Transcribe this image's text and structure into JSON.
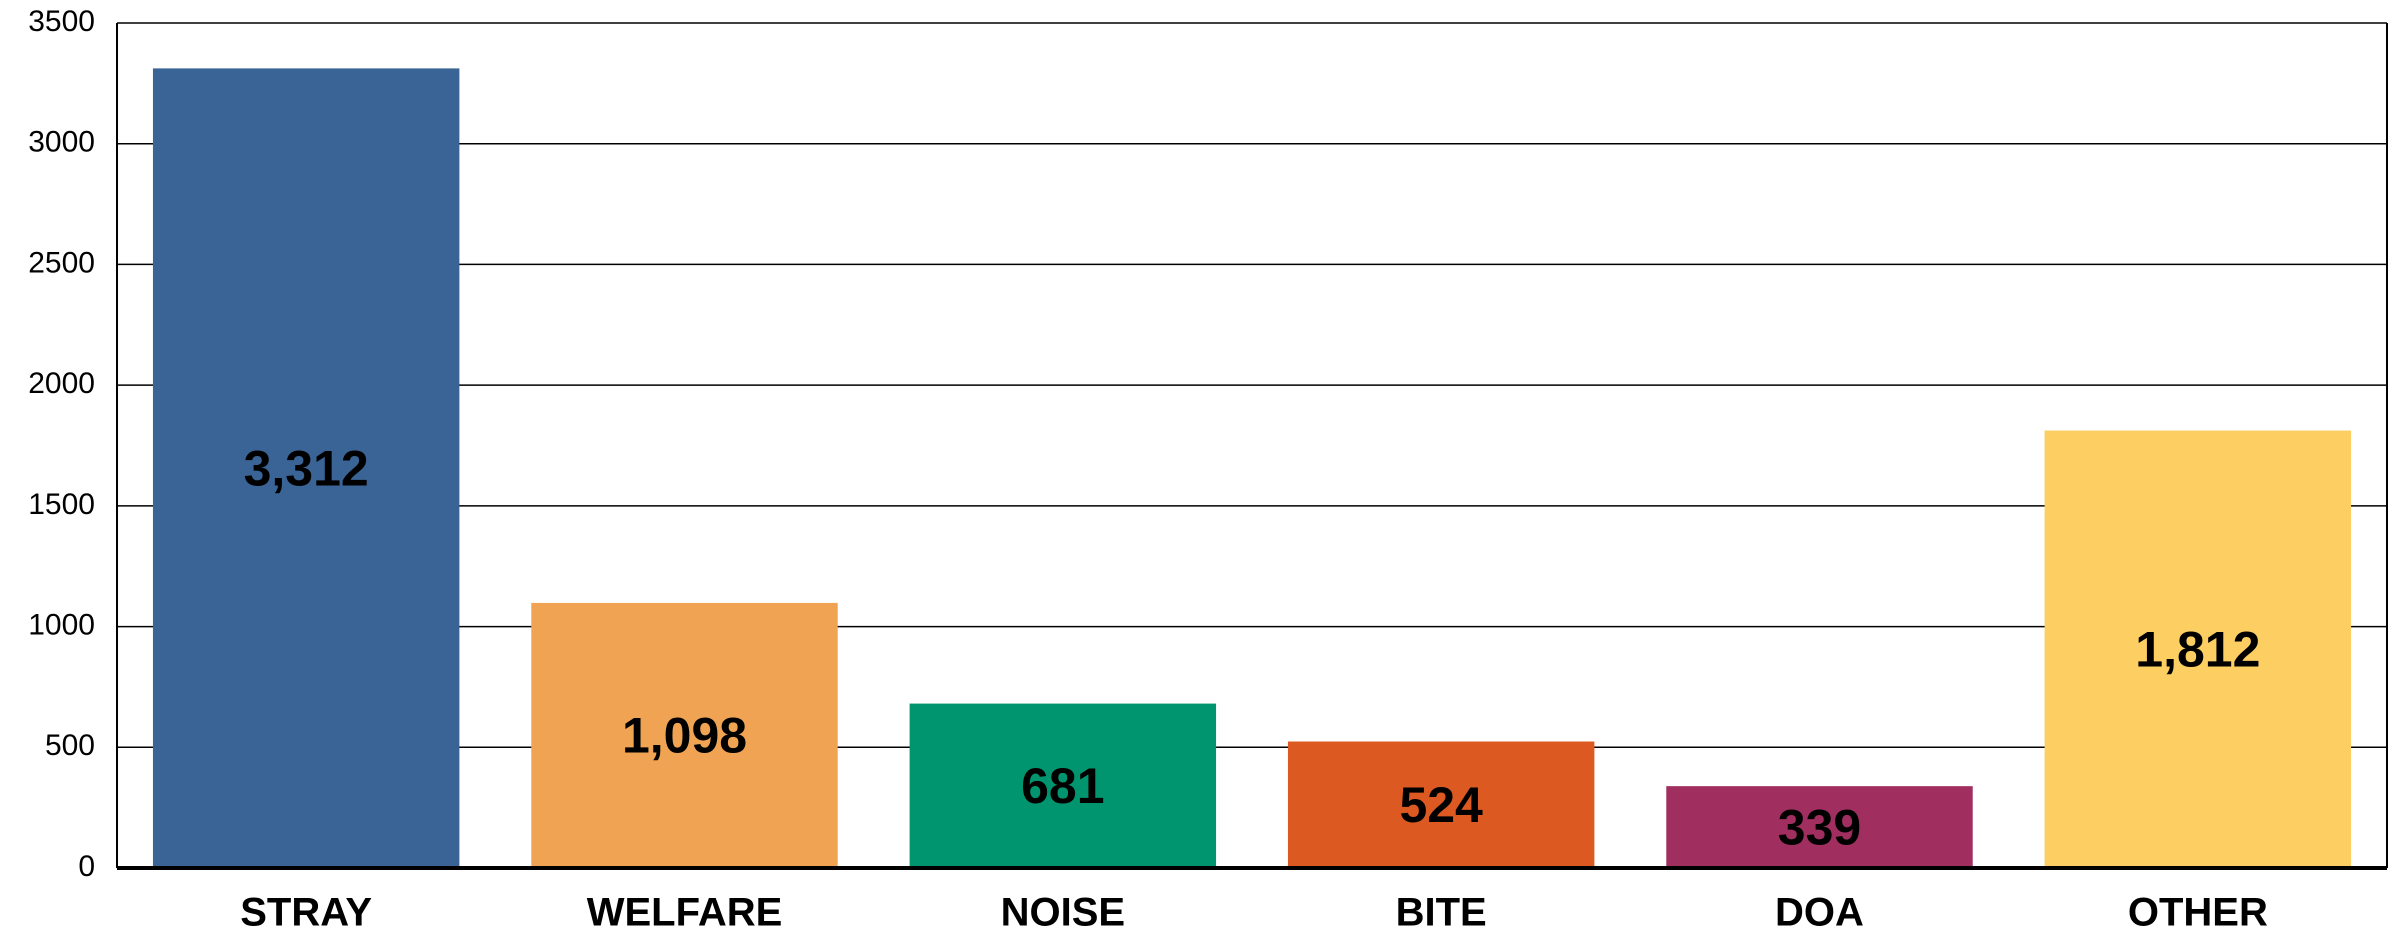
{
  "chart_data": {
    "type": "bar",
    "categories": [
      "STRAY",
      "WELFARE",
      "NOISE",
      "BITE",
      "DOA",
      "OTHER"
    ],
    "values": [
      3312,
      1098,
      681,
      524,
      339,
      1812
    ],
    "value_labels": [
      "3,312",
      "1,098",
      "681",
      "524",
      "339",
      "1,812"
    ],
    "colors": [
      "#3a6496",
      "#f0a453",
      "#00956e",
      "#dc5a22",
      "#a02f60",
      "#fdcf62"
    ],
    "ylim": [
      0,
      3500
    ],
    "yticks": [
      0,
      500,
      1000,
      1500,
      2000,
      2500,
      3000,
      3500
    ],
    "grid": true
  }
}
